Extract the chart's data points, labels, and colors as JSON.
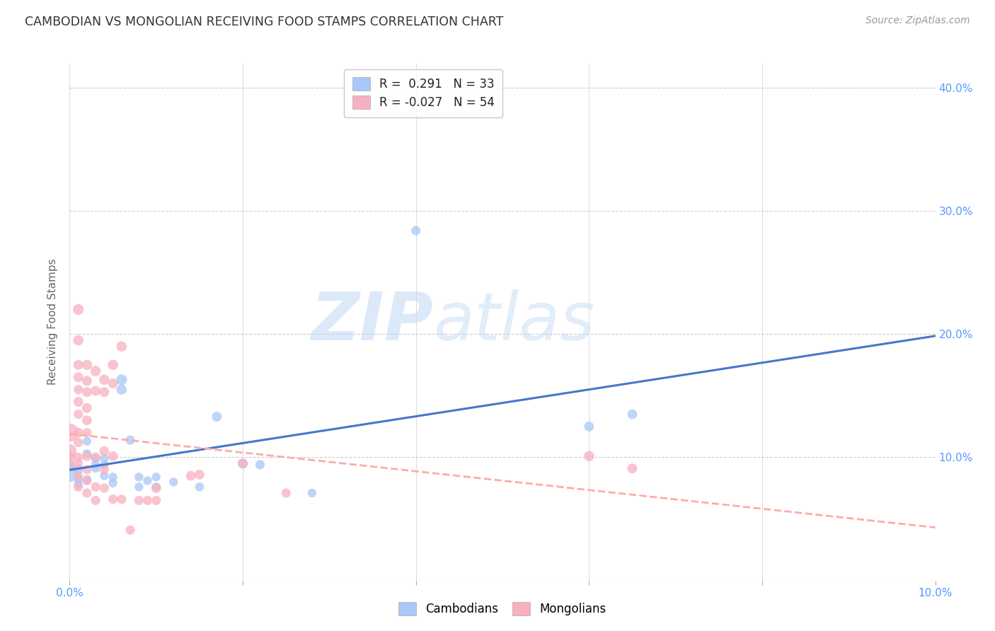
{
  "title": "CAMBODIAN VS MONGOLIAN RECEIVING FOOD STAMPS CORRELATION CHART",
  "source": "Source: ZipAtlas.com",
  "ylabel": "Receiving Food Stamps",
  "xlim": [
    0.0,
    0.1
  ],
  "ylim": [
    0.0,
    0.42
  ],
  "yticks": [
    0.0,
    0.1,
    0.2,
    0.3,
    0.4
  ],
  "ytick_labels_right": [
    "",
    "10.0%",
    "20.0%",
    "30.0%",
    "40.0%"
  ],
  "xticks": [
    0.0,
    0.02,
    0.04,
    0.06,
    0.08,
    0.1
  ],
  "xtick_labels": [
    "0.0%",
    "",
    "",
    "",
    "",
    "10.0%"
  ],
  "background_color": "#ffffff",
  "grid_color": "#cccccc",
  "cambodian_color": "#a8c8f8",
  "mongolian_color": "#f8b0c0",
  "cambodian_line_color": "#4477cc",
  "mongolian_line_color": "#ffaaaa",
  "legend_line1": "R =  0.291   N = 33",
  "legend_line2": "R = -0.027   N = 54",
  "watermark_zip": "ZIP",
  "watermark_atlas": "atlas",
  "watermark_color": "#d0e4f8",
  "tick_label_color": "#5599ff",
  "cambodian_scatter": [
    [
      0.0,
      0.087
    ],
    [
      0.0,
      0.093
    ],
    [
      0.001,
      0.09
    ],
    [
      0.001,
      0.082
    ],
    [
      0.001,
      0.078
    ],
    [
      0.002,
      0.103
    ],
    [
      0.002,
      0.113
    ],
    [
      0.002,
      0.082
    ],
    [
      0.003,
      0.099
    ],
    [
      0.003,
      0.094
    ],
    [
      0.003,
      0.091
    ],
    [
      0.004,
      0.099
    ],
    [
      0.004,
      0.094
    ],
    [
      0.004,
      0.085
    ],
    [
      0.005,
      0.084
    ],
    [
      0.005,
      0.079
    ],
    [
      0.006,
      0.163
    ],
    [
      0.006,
      0.155
    ],
    [
      0.007,
      0.114
    ],
    [
      0.008,
      0.084
    ],
    [
      0.008,
      0.076
    ],
    [
      0.009,
      0.081
    ],
    [
      0.01,
      0.084
    ],
    [
      0.01,
      0.076
    ],
    [
      0.012,
      0.08
    ],
    [
      0.015,
      0.076
    ],
    [
      0.017,
      0.133
    ],
    [
      0.02,
      0.095
    ],
    [
      0.022,
      0.094
    ],
    [
      0.028,
      0.071
    ],
    [
      0.04,
      0.284
    ],
    [
      0.06,
      0.125
    ],
    [
      0.065,
      0.135
    ]
  ],
  "mongolian_scatter": [
    [
      0.0,
      0.12
    ],
    [
      0.0,
      0.105
    ],
    [
      0.0,
      0.1
    ],
    [
      0.0,
      0.095
    ],
    [
      0.001,
      0.22
    ],
    [
      0.001,
      0.195
    ],
    [
      0.001,
      0.175
    ],
    [
      0.001,
      0.165
    ],
    [
      0.001,
      0.155
    ],
    [
      0.001,
      0.145
    ],
    [
      0.001,
      0.135
    ],
    [
      0.001,
      0.12
    ],
    [
      0.001,
      0.112
    ],
    [
      0.001,
      0.1
    ],
    [
      0.001,
      0.095
    ],
    [
      0.001,
      0.085
    ],
    [
      0.001,
      0.076
    ],
    [
      0.002,
      0.175
    ],
    [
      0.002,
      0.162
    ],
    [
      0.002,
      0.153
    ],
    [
      0.002,
      0.14
    ],
    [
      0.002,
      0.13
    ],
    [
      0.002,
      0.12
    ],
    [
      0.002,
      0.101
    ],
    [
      0.002,
      0.09
    ],
    [
      0.002,
      0.081
    ],
    [
      0.002,
      0.071
    ],
    [
      0.003,
      0.17
    ],
    [
      0.003,
      0.154
    ],
    [
      0.003,
      0.1
    ],
    [
      0.003,
      0.076
    ],
    [
      0.003,
      0.065
    ],
    [
      0.004,
      0.163
    ],
    [
      0.004,
      0.153
    ],
    [
      0.004,
      0.105
    ],
    [
      0.004,
      0.09
    ],
    [
      0.004,
      0.075
    ],
    [
      0.005,
      0.175
    ],
    [
      0.005,
      0.16
    ],
    [
      0.005,
      0.101
    ],
    [
      0.005,
      0.066
    ],
    [
      0.006,
      0.19
    ],
    [
      0.006,
      0.066
    ],
    [
      0.007,
      0.041
    ],
    [
      0.008,
      0.065
    ],
    [
      0.009,
      0.065
    ],
    [
      0.01,
      0.075
    ],
    [
      0.01,
      0.065
    ],
    [
      0.014,
      0.085
    ],
    [
      0.015,
      0.086
    ],
    [
      0.02,
      0.095
    ],
    [
      0.025,
      0.071
    ],
    [
      0.06,
      0.101
    ],
    [
      0.065,
      0.091
    ]
  ],
  "cambodian_sizes": [
    300,
    100,
    100,
    80,
    80,
    80,
    80,
    80,
    80,
    80,
    80,
    80,
    80,
    80,
    80,
    80,
    120,
    110,
    90,
    80,
    80,
    80,
    80,
    80,
    80,
    80,
    100,
    90,
    90,
    80,
    90,
    100,
    100
  ],
  "mongolian_sizes": [
    350,
    200,
    120,
    100,
    120,
    110,
    100,
    100,
    90,
    100,
    90,
    100,
    90,
    90,
    90,
    90,
    90,
    110,
    100,
    100,
    100,
    100,
    90,
    100,
    90,
    90,
    90,
    110,
    100,
    100,
    90,
    90,
    110,
    100,
    100,
    90,
    90,
    110,
    100,
    100,
    90,
    110,
    90,
    90,
    90,
    90,
    100,
    90,
    100,
    100,
    110,
    90,
    110,
    100
  ]
}
